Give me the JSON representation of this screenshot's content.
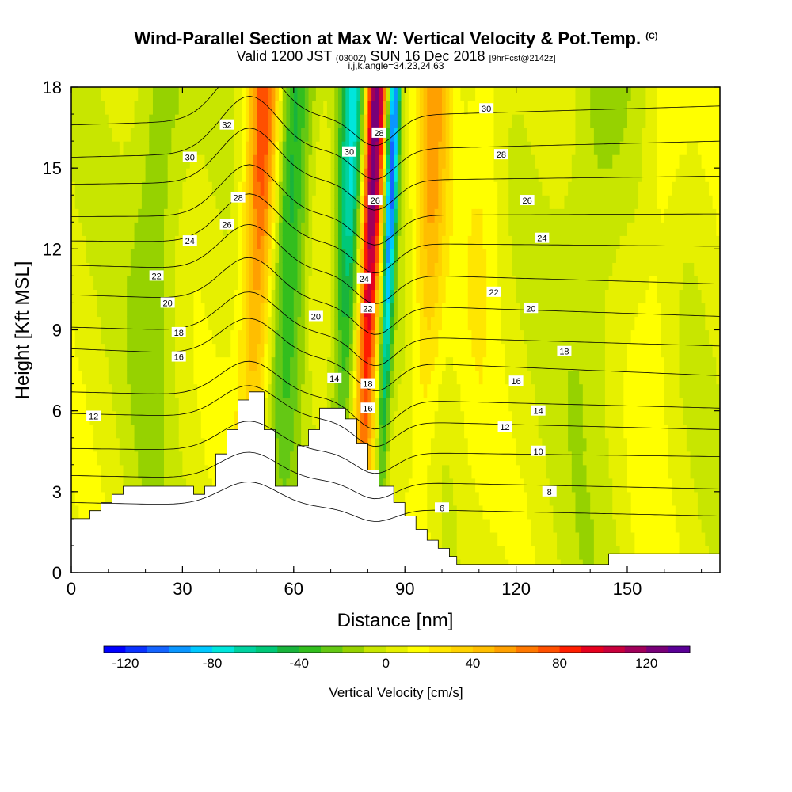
{
  "header": {
    "title": "Wind-Parallel Section at Max W: Vertical Velocity & Pot.Temp.",
    "title_unit": "(C)",
    "valid_prefix": "Valid 1200 JST",
    "valid_utc": "(0300Z)",
    "valid_date": "SUN 16 Dec 2018",
    "forecast": "[9hrFcst@2142z]",
    "indices": "i,j,k,angle=34,23,24,63"
  },
  "chart_data": {
    "type": "heatmap",
    "title": "Wind-Parallel Section at Max W: Vertical Velocity & Pot.Temp.",
    "xlabel": "Distance [nm]",
    "ylabel": "Height [Kft MSL]",
    "xlim": [
      0,
      175
    ],
    "ylim": [
      0,
      18
    ],
    "x_ticks": [
      0,
      30,
      60,
      90,
      120,
      150
    ],
    "y_ticks": [
      0,
      3,
      6,
      9,
      12,
      15,
      18
    ],
    "colorbar": {
      "label": "Vertical Velocity [cm/s]",
      "ticks": [
        -120,
        -80,
        -40,
        0,
        40,
        80,
        120
      ],
      "min": -130,
      "max": 140,
      "step": 10,
      "colors": [
        "#0000ff",
        "#0a32ff",
        "#1464ff",
        "#0a96ff",
        "#00c8ff",
        "#00e6dc",
        "#00d2a0",
        "#00c878",
        "#19b43c",
        "#32be1e",
        "#64c814",
        "#96d200",
        "#c8e600",
        "#e6f000",
        "#ffff00",
        "#ffe600",
        "#ffd200",
        "#ffbe00",
        "#ffa000",
        "#ff7800",
        "#ff5000",
        "#ff1e00",
        "#e6001e",
        "#c8003c",
        "#a0005a",
        "#780078",
        "#5a0096"
      ]
    },
    "terrain_profile": [
      [
        0,
        2
      ],
      [
        5,
        2
      ],
      [
        5,
        2.3
      ],
      [
        8,
        2.3
      ],
      [
        8,
        2.6
      ],
      [
        11,
        2.6
      ],
      [
        11,
        2.9
      ],
      [
        14,
        2.9
      ],
      [
        14,
        3.2
      ],
      [
        33,
        3.2
      ],
      [
        33,
        2.9
      ],
      [
        36,
        2.9
      ],
      [
        36,
        3.2
      ],
      [
        39,
        3.2
      ],
      [
        39,
        4.4
      ],
      [
        42,
        4.4
      ],
      [
        42,
        5.3
      ],
      [
        45,
        5.3
      ],
      [
        45,
        6.4
      ],
      [
        48,
        6.4
      ],
      [
        48,
        6.7
      ],
      [
        52,
        6.7
      ],
      [
        52,
        5.3
      ],
      [
        55,
        5.3
      ],
      [
        55,
        3.2
      ],
      [
        61,
        3.2
      ],
      [
        61,
        4.7
      ],
      [
        64,
        4.7
      ],
      [
        64,
        5.3
      ],
      [
        67,
        5.3
      ],
      [
        67,
        6.1
      ],
      [
        74,
        6.1
      ],
      [
        74,
        5.7
      ],
      [
        77,
        5.7
      ],
      [
        77,
        4.8
      ],
      [
        80,
        4.8
      ],
      [
        80,
        3.8
      ],
      [
        83,
        3.8
      ],
      [
        83,
        3.2
      ],
      [
        87,
        3.2
      ],
      [
        87,
        2.6
      ],
      [
        90,
        2.6
      ],
      [
        90,
        2.1
      ],
      [
        93,
        2.1
      ],
      [
        93,
        1.6
      ],
      [
        96,
        1.6
      ],
      [
        96,
        1.2
      ],
      [
        99,
        1.2
      ],
      [
        99,
        0.9
      ],
      [
        102,
        0.9
      ],
      [
        102,
        0.6
      ],
      [
        104,
        0.6
      ],
      [
        104,
        0.3
      ],
      [
        145,
        0.3
      ],
      [
        145,
        0.7
      ],
      [
        175,
        0.7
      ]
    ],
    "w_features": [
      {
        "x": 50,
        "w": 75,
        "sigma": 3.2
      },
      {
        "x": 58,
        "w": -55,
        "sigma": 3.5
      },
      {
        "x": 74,
        "w": -75,
        "sigma": 2.5
      },
      {
        "x": 80,
        "w": 135,
        "sigma": 2.0
      },
      {
        "x": 85,
        "w": -110,
        "sigma": 1.2
      },
      {
        "x": 96,
        "w": 45,
        "sigma": 3.0
      },
      {
        "x": 110,
        "w": 15,
        "sigma": 4.0
      },
      {
        "x": 22,
        "w": -25,
        "sigma": 5.0
      },
      {
        "x": 140,
        "w": -20,
        "sigma": 6.0
      },
      {
        "x": 158,
        "w": 15,
        "sigma": 4.0
      }
    ],
    "theta_contours": [
      {
        "value": 6,
        "y_left": 2.6,
        "y_right": 2.1
      },
      {
        "value": 8,
        "y_left": 3.6,
        "y_right": 3.1
      },
      {
        "value": 10,
        "y_left": 4.6,
        "y_right": 4.3
      },
      {
        "value": 12,
        "y_left": 5.9,
        "y_right": 5.3
      },
      {
        "value": 14,
        "y_left": 6.7,
        "y_right": 6.1
      },
      {
        "value": 16,
        "y_left": 8.3,
        "y_right": 7.3
      },
      {
        "value": 18,
        "y_left": 9.1,
        "y_right": 8.4
      },
      {
        "value": 20,
        "y_left": 10.3,
        "y_right": 9.5
      },
      {
        "value": 22,
        "y_left": 11.4,
        "y_right": 10.7
      },
      {
        "value": 24,
        "y_left": 12.3,
        "y_right": 12.1
      },
      {
        "value": 26,
        "y_left": 13.2,
        "y_right": 13.3
      },
      {
        "value": 28,
        "y_left": 14.4,
        "y_right": 14.7
      },
      {
        "value": 30,
        "y_left": 15.4,
        "y_right": 16.0
      },
      {
        "value": 32,
        "y_left": 16.6,
        "y_right": 17.3
      }
    ],
    "contour_labels": [
      {
        "text": "6",
        "x": 100,
        "y": 2.4
      },
      {
        "text": "8",
        "x": 129,
        "y": 3.0
      },
      {
        "text": "10",
        "x": 126,
        "y": 4.5
      },
      {
        "text": "12",
        "x": 6,
        "y": 5.8
      },
      {
        "text": "12",
        "x": 117,
        "y": 5.4
      },
      {
        "text": "14",
        "x": 71,
        "y": 7.2
      },
      {
        "text": "14",
        "x": 126,
        "y": 6.0
      },
      {
        "text": "16",
        "x": 29,
        "y": 8.0
      },
      {
        "text": "16",
        "x": 80,
        "y": 6.1
      },
      {
        "text": "16",
        "x": 120,
        "y": 7.1
      },
      {
        "text": "18",
        "x": 29,
        "y": 8.9
      },
      {
        "text": "18",
        "x": 80,
        "y": 7.0
      },
      {
        "text": "18",
        "x": 133,
        "y": 8.2
      },
      {
        "text": "20",
        "x": 26,
        "y": 10.0
      },
      {
        "text": "20",
        "x": 66,
        "y": 9.5
      },
      {
        "text": "20",
        "x": 124,
        "y": 9.8
      },
      {
        "text": "22",
        "x": 23,
        "y": 11.0
      },
      {
        "text": "22",
        "x": 80,
        "y": 9.8
      },
      {
        "text": "22",
        "x": 114,
        "y": 10.4
      },
      {
        "text": "24",
        "x": 32,
        "y": 12.3
      },
      {
        "text": "24",
        "x": 79,
        "y": 10.9
      },
      {
        "text": "24",
        "x": 127,
        "y": 12.4
      },
      {
        "text": "26",
        "x": 42,
        "y": 12.9
      },
      {
        "text": "26",
        "x": 82,
        "y": 13.8
      },
      {
        "text": "26",
        "x": 123,
        "y": 13.8
      },
      {
        "text": "28",
        "x": 45,
        "y": 13.9
      },
      {
        "text": "28",
        "x": 83,
        "y": 16.3
      },
      {
        "text": "28",
        "x": 116,
        "y": 15.5
      },
      {
        "text": "30",
        "x": 32,
        "y": 15.4
      },
      {
        "text": "30",
        "x": 75,
        "y": 15.6
      },
      {
        "text": "30",
        "x": 112,
        "y": 17.2
      },
      {
        "text": "32",
        "x": 42,
        "y": 16.6
      }
    ]
  }
}
